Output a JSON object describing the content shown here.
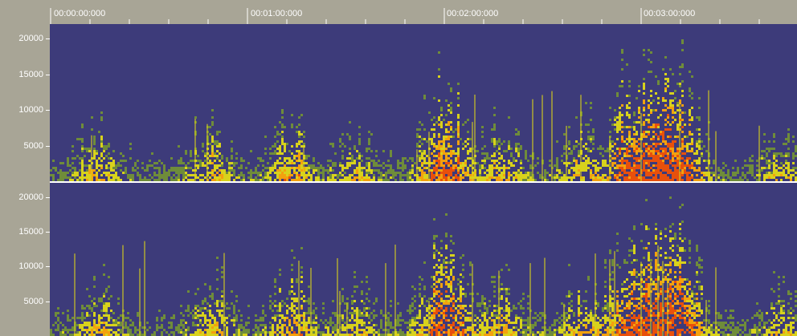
{
  "timeline": {
    "labels": [
      "00:00:00:000",
      "00:01:00:000",
      "00:02:00:000",
      "00:03:00:000"
    ]
  },
  "frequency_axis": {
    "labels": [
      "20000",
      "15000",
      "10000",
      "5000"
    ],
    "max_hz": 22050
  },
  "channels": [
    {
      "id": "channel-1"
    },
    {
      "id": "channel-2"
    }
  ],
  "colors": {
    "background": "#3d3b7a",
    "low": "#6f8c3a",
    "mid": "#d8d21c",
    "high": "#f3a10e",
    "peak": "#e8500c",
    "chrome": "#a8a596"
  }
}
